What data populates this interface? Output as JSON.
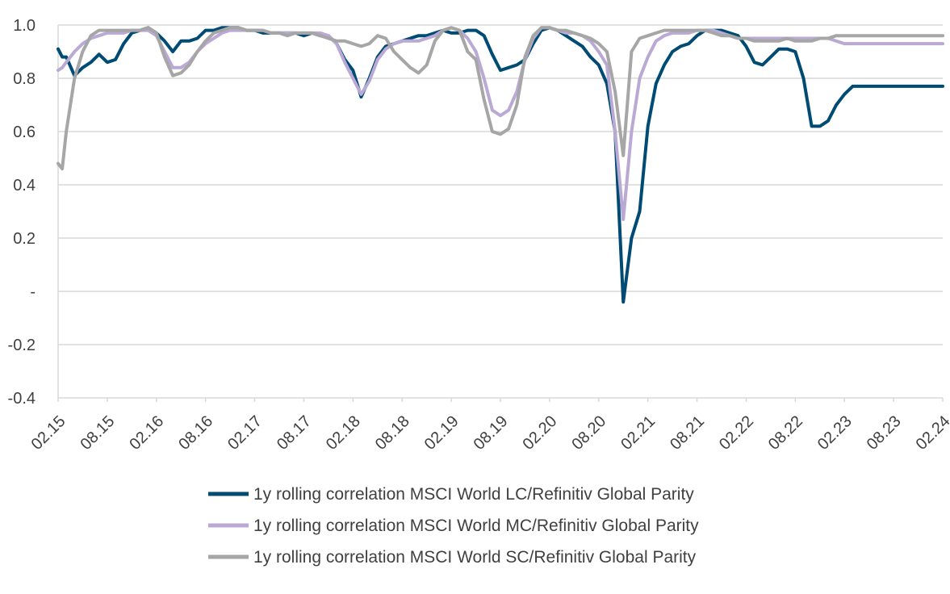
{
  "chart_data": {
    "type": "line",
    "title": "",
    "xlabel": "",
    "ylabel": "",
    "ylim": [
      -0.4,
      1.0
    ],
    "grid": "horizontal",
    "legend_position": "bottom",
    "y_ticks": [
      {
        "value": 1.0,
        "label": "1.0"
      },
      {
        "value": 0.8,
        "label": "0.8"
      },
      {
        "value": 0.6,
        "label": "0.6"
      },
      {
        "value": 0.4,
        "label": "0.4"
      },
      {
        "value": 0.2,
        "label": "0.2"
      },
      {
        "value": 0.0,
        "label": "-"
      },
      {
        "value": -0.2,
        "label": "-0.2"
      },
      {
        "value": -0.4,
        "label": "-0.4"
      }
    ],
    "x_ticks": [
      "02.15",
      "08.15",
      "02.16",
      "08.16",
      "02.17",
      "08.17",
      "02.18",
      "08.18",
      "02.19",
      "08.19",
      "02.20",
      "08.20",
      "02.21",
      "08.21",
      "02.22",
      "08.22",
      "02.23",
      "08.23",
      "02.24"
    ],
    "x_unit": "month index from 02.15",
    "x": [
      0,
      0.5,
      1,
      2,
      3,
      4,
      5,
      6,
      7,
      8,
      9,
      10,
      11,
      12,
      13,
      14,
      15,
      16,
      17,
      18,
      19,
      20,
      21,
      22,
      23,
      24,
      25,
      26,
      27,
      28,
      29,
      30,
      31,
      32,
      33,
      34,
      35,
      36,
      37,
      38,
      39,
      40,
      41,
      42,
      43,
      44,
      45,
      46,
      47,
      48,
      49,
      50,
      51,
      52,
      53,
      54,
      55,
      56,
      57,
      58,
      59,
      60,
      61,
      62,
      63,
      64,
      65,
      66,
      67,
      68,
      69,
      70,
      71,
      72,
      73,
      74,
      75,
      76,
      77,
      78,
      79,
      80,
      81,
      82,
      83,
      84,
      85,
      86,
      87,
      88,
      89,
      90,
      91,
      92,
      93,
      94,
      95,
      96,
      97,
      98,
      99,
      100,
      101,
      102,
      103,
      104,
      105,
      106,
      107,
      108
    ],
    "series": [
      {
        "name": "1y rolling correlation MSCI World LC/Refinitiv Global Parity",
        "color": "#004b73",
        "values": [
          0.91,
          0.88,
          0.88,
          0.81,
          0.84,
          0.86,
          0.89,
          0.86,
          0.87,
          0.93,
          0.97,
          0.98,
          0.99,
          0.97,
          0.94,
          0.9,
          0.94,
          0.94,
          0.95,
          0.98,
          0.98,
          0.99,
          0.99,
          0.99,
          0.98,
          0.98,
          0.97,
          0.97,
          0.97,
          0.97,
          0.97,
          0.96,
          0.97,
          0.96,
          0.96,
          0.93,
          0.87,
          0.83,
          0.73,
          0.8,
          0.88,
          0.92,
          0.93,
          0.94,
          0.95,
          0.96,
          0.96,
          0.97,
          0.98,
          0.97,
          0.97,
          0.98,
          0.98,
          0.96,
          0.89,
          0.83,
          0.84,
          0.85,
          0.87,
          0.93,
          0.98,
          0.99,
          0.98,
          0.96,
          0.94,
          0.92,
          0.88,
          0.85,
          0.78,
          0.6,
          -0.04,
          0.2,
          0.3,
          0.62,
          0.78,
          0.85,
          0.9,
          0.92,
          0.93,
          0.96,
          0.98,
          0.98,
          0.98,
          0.97,
          0.96,
          0.92,
          0.86,
          0.85,
          0.88,
          0.91,
          0.91,
          0.9,
          0.8,
          0.62,
          0.62,
          0.64,
          0.7,
          0.74,
          0.77,
          0.77,
          0.77,
          0.77,
          0.77,
          0.77,
          0.77,
          0.77,
          0.77,
          0.77,
          0.77,
          0.77
        ]
      },
      {
        "name": "1y rolling correlation MSCI World MC/Refinitiv Global Parity",
        "color": "#b9a9d4",
        "values": [
          0.83,
          0.84,
          0.86,
          0.9,
          0.93,
          0.95,
          0.96,
          0.97,
          0.97,
          0.97,
          0.98,
          0.98,
          0.98,
          0.96,
          0.9,
          0.84,
          0.84,
          0.86,
          0.9,
          0.93,
          0.95,
          0.97,
          0.98,
          0.98,
          0.98,
          0.98,
          0.98,
          0.97,
          0.97,
          0.97,
          0.97,
          0.97,
          0.97,
          0.97,
          0.96,
          0.93,
          0.86,
          0.8,
          0.74,
          0.79,
          0.87,
          0.91,
          0.93,
          0.94,
          0.94,
          0.94,
          0.95,
          0.96,
          0.98,
          0.99,
          0.98,
          0.95,
          0.9,
          0.8,
          0.68,
          0.66,
          0.68,
          0.75,
          0.87,
          0.95,
          0.99,
          0.99,
          0.98,
          0.97,
          0.97,
          0.96,
          0.94,
          0.9,
          0.85,
          0.6,
          0.27,
          0.6,
          0.8,
          0.88,
          0.94,
          0.96,
          0.97,
          0.97,
          0.97,
          0.98,
          0.98,
          0.98,
          0.97,
          0.96,
          0.95,
          0.95,
          0.95,
          0.95,
          0.95,
          0.95,
          0.95,
          0.95,
          0.95,
          0.95,
          0.95,
          0.95,
          0.94,
          0.93,
          0.93,
          0.93,
          0.93,
          0.93,
          0.93,
          0.93,
          0.93,
          0.93,
          0.93,
          0.93,
          0.93,
          0.93
        ]
      },
      {
        "name": "1y rolling correlation MSCI World SC/Refinitiv Global Parity",
        "color": "#a6a6a6",
        "values": [
          0.48,
          0.46,
          0.6,
          0.8,
          0.9,
          0.96,
          0.98,
          0.98,
          0.98,
          0.98,
          0.98,
          0.98,
          0.99,
          0.97,
          0.88,
          0.81,
          0.82,
          0.85,
          0.9,
          0.94,
          0.97,
          0.98,
          0.99,
          0.99,
          0.98,
          0.98,
          0.98,
          0.97,
          0.97,
          0.96,
          0.97,
          0.97,
          0.97,
          0.96,
          0.95,
          0.94,
          0.94,
          0.93,
          0.92,
          0.93,
          0.96,
          0.95,
          0.9,
          0.87,
          0.84,
          0.82,
          0.85,
          0.94,
          0.98,
          0.99,
          0.98,
          0.9,
          0.87,
          0.72,
          0.6,
          0.59,
          0.61,
          0.7,
          0.88,
          0.96,
          0.99,
          0.99,
          0.98,
          0.98,
          0.97,
          0.96,
          0.95,
          0.93,
          0.9,
          0.75,
          0.51,
          0.9,
          0.95,
          0.96,
          0.97,
          0.98,
          0.98,
          0.98,
          0.98,
          0.98,
          0.98,
          0.97,
          0.96,
          0.96,
          0.95,
          0.95,
          0.94,
          0.94,
          0.94,
          0.94,
          0.95,
          0.94,
          0.94,
          0.94,
          0.95,
          0.95,
          0.96,
          0.96,
          0.96,
          0.96,
          0.96,
          0.96,
          0.96,
          0.96,
          0.96,
          0.96,
          0.96,
          0.96,
          0.96,
          0.96
        ]
      }
    ]
  }
}
